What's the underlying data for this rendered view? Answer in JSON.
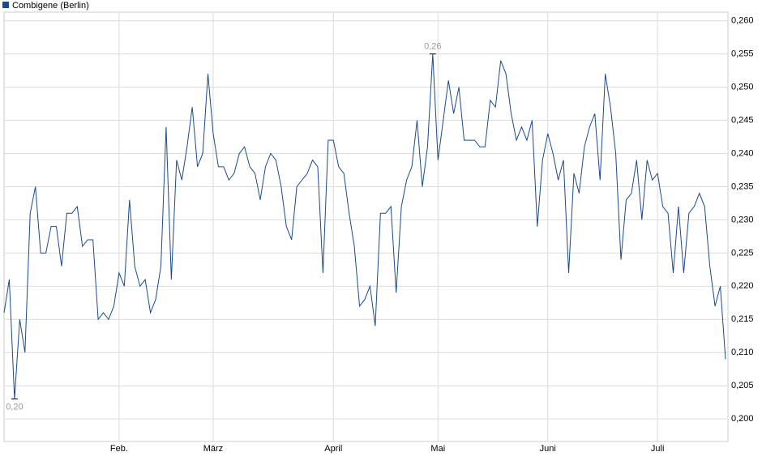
{
  "chart_data": {
    "type": "line",
    "series": [
      {
        "name": "Combigene (Berlin)",
        "color": "#1a4a8c",
        "values": [
          0.216,
          0.221,
          0.203,
          0.215,
          0.21,
          0.231,
          0.235,
          0.225,
          0.225,
          0.229,
          0.229,
          0.223,
          0.231,
          0.231,
          0.232,
          0.226,
          0.227,
          0.227,
          0.215,
          0.216,
          0.215,
          0.217,
          0.222,
          0.22,
          0.233,
          0.223,
          0.22,
          0.221,
          0.216,
          0.218,
          0.223,
          0.244,
          0.221,
          0.239,
          0.236,
          0.241,
          0.247,
          0.238,
          0.24,
          0.252,
          0.243,
          0.238,
          0.238,
          0.236,
          0.237,
          0.24,
          0.241,
          0.238,
          0.237,
          0.233,
          0.238,
          0.24,
          0.239,
          0.235,
          0.229,
          0.227,
          0.235,
          0.236,
          0.237,
          0.239,
          0.238,
          0.222,
          0.242,
          0.242,
          0.238,
          0.237,
          0.231,
          0.226,
          0.217,
          0.218,
          0.22,
          0.214,
          0.231,
          0.231,
          0.232,
          0.219,
          0.232,
          0.236,
          0.238,
          0.245,
          0.235,
          0.241,
          0.255,
          0.239,
          0.245,
          0.251,
          0.246,
          0.25,
          0.242,
          0.242,
          0.242,
          0.241,
          0.241,
          0.248,
          0.247,
          0.254,
          0.252,
          0.246,
          0.242,
          0.244,
          0.242,
          0.245,
          0.229,
          0.239,
          0.243,
          0.24,
          0.236,
          0.239,
          0.222,
          0.237,
          0.234,
          0.241,
          0.244,
          0.246,
          0.236,
          0.252,
          0.247,
          0.24,
          0.224,
          0.233,
          0.234,
          0.239,
          0.23,
          0.239,
          0.236,
          0.237,
          0.232,
          0.231,
          0.222,
          0.232,
          0.222,
          0.231,
          0.232,
          0.234,
          0.232,
          0.223,
          0.217,
          0.22,
          0.209
        ]
      }
    ],
    "ylim": [
      0.1966,
      0.2613
    ],
    "yticks": [
      {
        "value": 0.2,
        "label": "0,200"
      },
      {
        "value": 0.205,
        "label": "0,205"
      },
      {
        "value": 0.21,
        "label": "0,210"
      },
      {
        "value": 0.215,
        "label": "0,215"
      },
      {
        "value": 0.22,
        "label": "0,220"
      },
      {
        "value": 0.225,
        "label": "0,225"
      },
      {
        "value": 0.23,
        "label": "0,230"
      },
      {
        "value": 0.235,
        "label": "0,235"
      },
      {
        "value": 0.24,
        "label": "0,240"
      },
      {
        "value": 0.245,
        "label": "0,245"
      },
      {
        "value": 0.25,
        "label": "0,250"
      },
      {
        "value": 0.255,
        "label": "0,255"
      },
      {
        "value": 0.26,
        "label": "0,260"
      }
    ],
    "xticks": [
      {
        "value": 22,
        "label": "Feb."
      },
      {
        "value": 40,
        "label": "März"
      },
      {
        "value": 63,
        "label": "April"
      },
      {
        "value": 83,
        "label": "Mai"
      },
      {
        "value": 104,
        "label": "Juni"
      },
      {
        "value": 125,
        "label": "Juli"
      }
    ],
    "annotations": [
      {
        "x": 2,
        "label": "0,20"
      },
      {
        "x": 82,
        "label": "0,26"
      }
    ],
    "grid": true,
    "legend": "top-left"
  }
}
